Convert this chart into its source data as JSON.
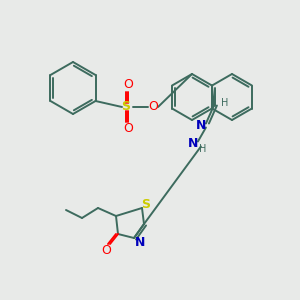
{
  "background_color": "#e8eae8",
  "bond_color": "#3d6b5e",
  "atom_colors": {
    "S": "#cccc00",
    "O": "#ff0000",
    "N": "#0000bb",
    "C": "#3d6b5e",
    "H": "#3d6b5e"
  },
  "figsize": [
    3.0,
    3.0
  ],
  "dpi": 100,
  "lw": 1.4
}
